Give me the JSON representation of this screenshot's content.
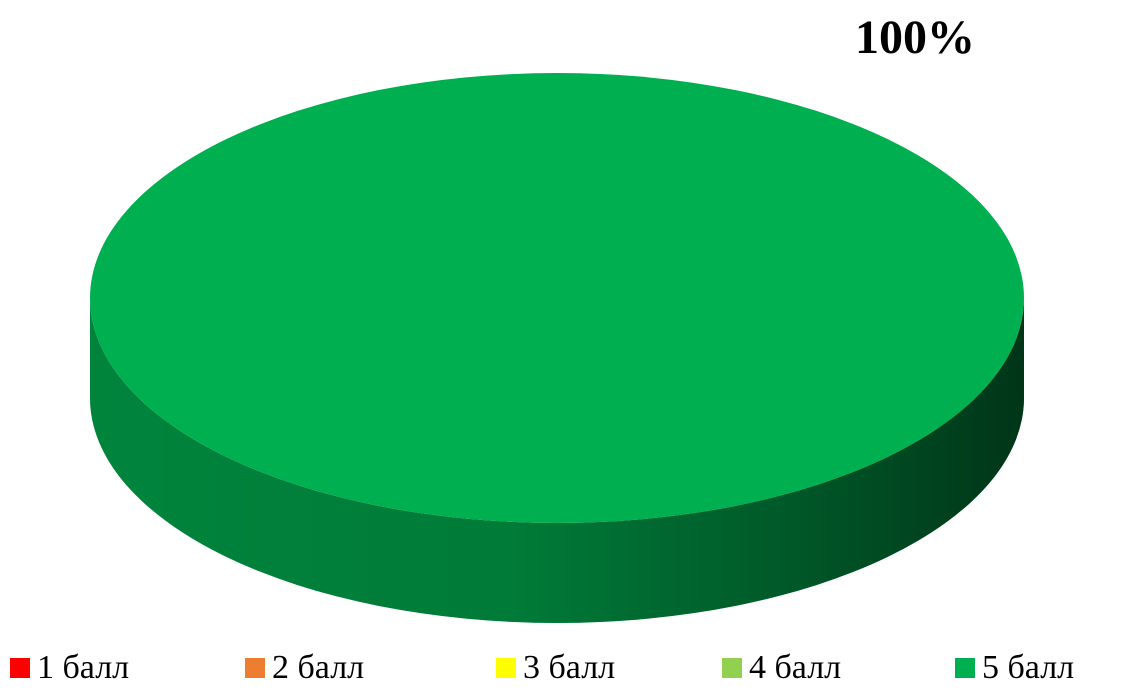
{
  "chart_data": {
    "type": "pie",
    "pie_style": "3d",
    "categories": [
      "1 балл",
      "2 балл",
      "3 балл",
      "4 балл",
      "5 балл"
    ],
    "values": [
      0,
      0,
      0,
      0,
      100
    ],
    "value_labels": [
      null,
      null,
      null,
      null,
      "100%"
    ],
    "colors": [
      "#ff0000",
      "#ed7d31",
      "#ffff00",
      "#92d050",
      "#00b050"
    ],
    "legend": "bottom"
  }
}
